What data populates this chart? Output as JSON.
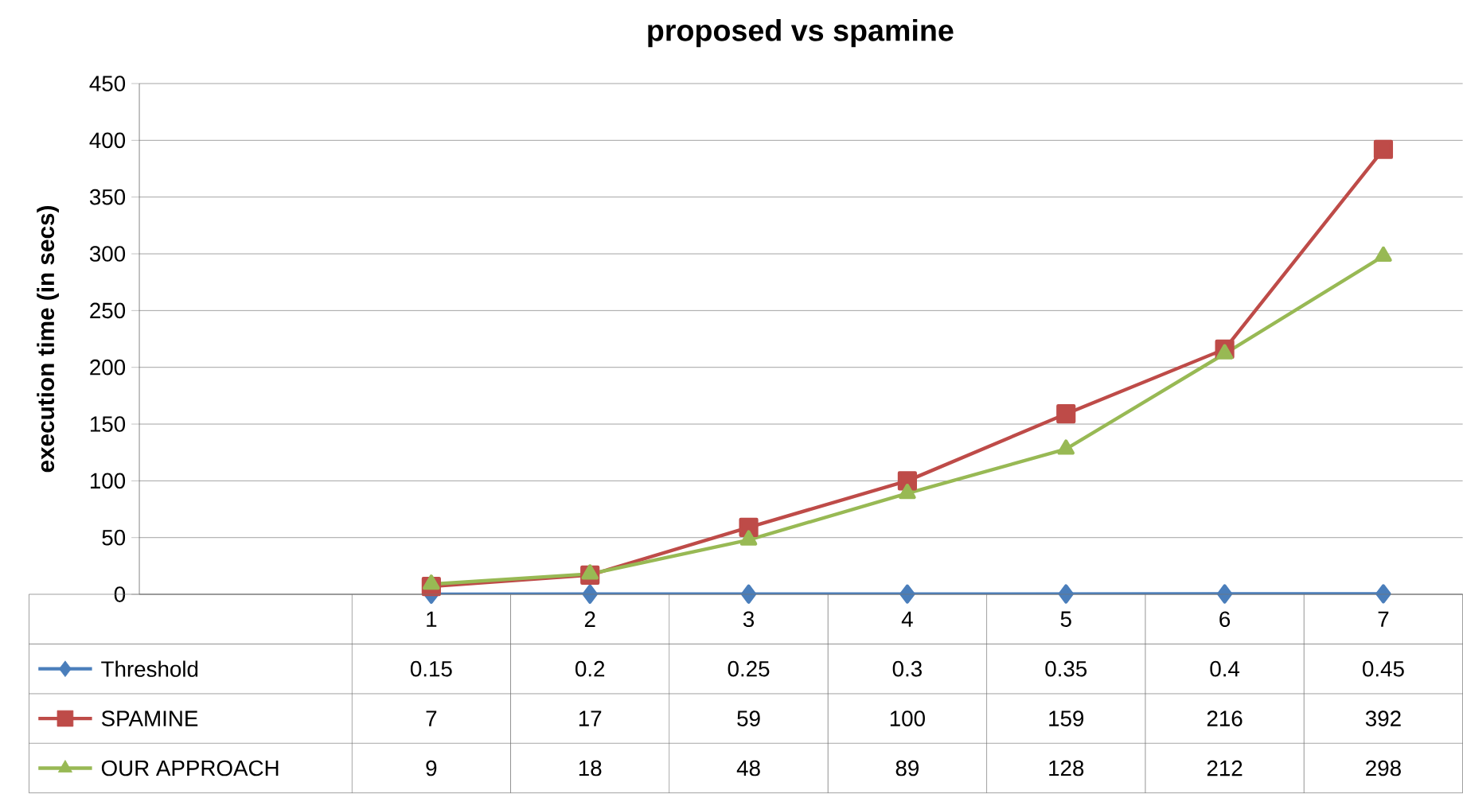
{
  "chart_data": {
    "type": "line",
    "title": "proposed vs spamine",
    "ylabel": "execution time (in secs)",
    "categories": [
      "1",
      "2",
      "3",
      "4",
      "5",
      "6",
      "7"
    ],
    "series": [
      {
        "name": "Threshold",
        "color": "#4a7ebb",
        "marker": "diamond",
        "values": [
          0.15,
          0.2,
          0.25,
          0.3,
          0.35,
          0.4,
          0.45
        ]
      },
      {
        "name": "SPAMINE",
        "color": "#be4b48",
        "marker": "square",
        "values": [
          7,
          17,
          59,
          100,
          159,
          216,
          392
        ]
      },
      {
        "name": "OUR APPROACH",
        "color": "#98b954",
        "marker": "triangle",
        "values": [
          9,
          18,
          48,
          89,
          128,
          212,
          298
        ]
      }
    ],
    "ylim": [
      0,
      450
    ],
    "yticks": [
      0,
      50,
      100,
      150,
      200,
      250,
      300,
      350,
      400,
      450
    ],
    "grid": "y",
    "legend": "bottom",
    "data_labels": true
  }
}
